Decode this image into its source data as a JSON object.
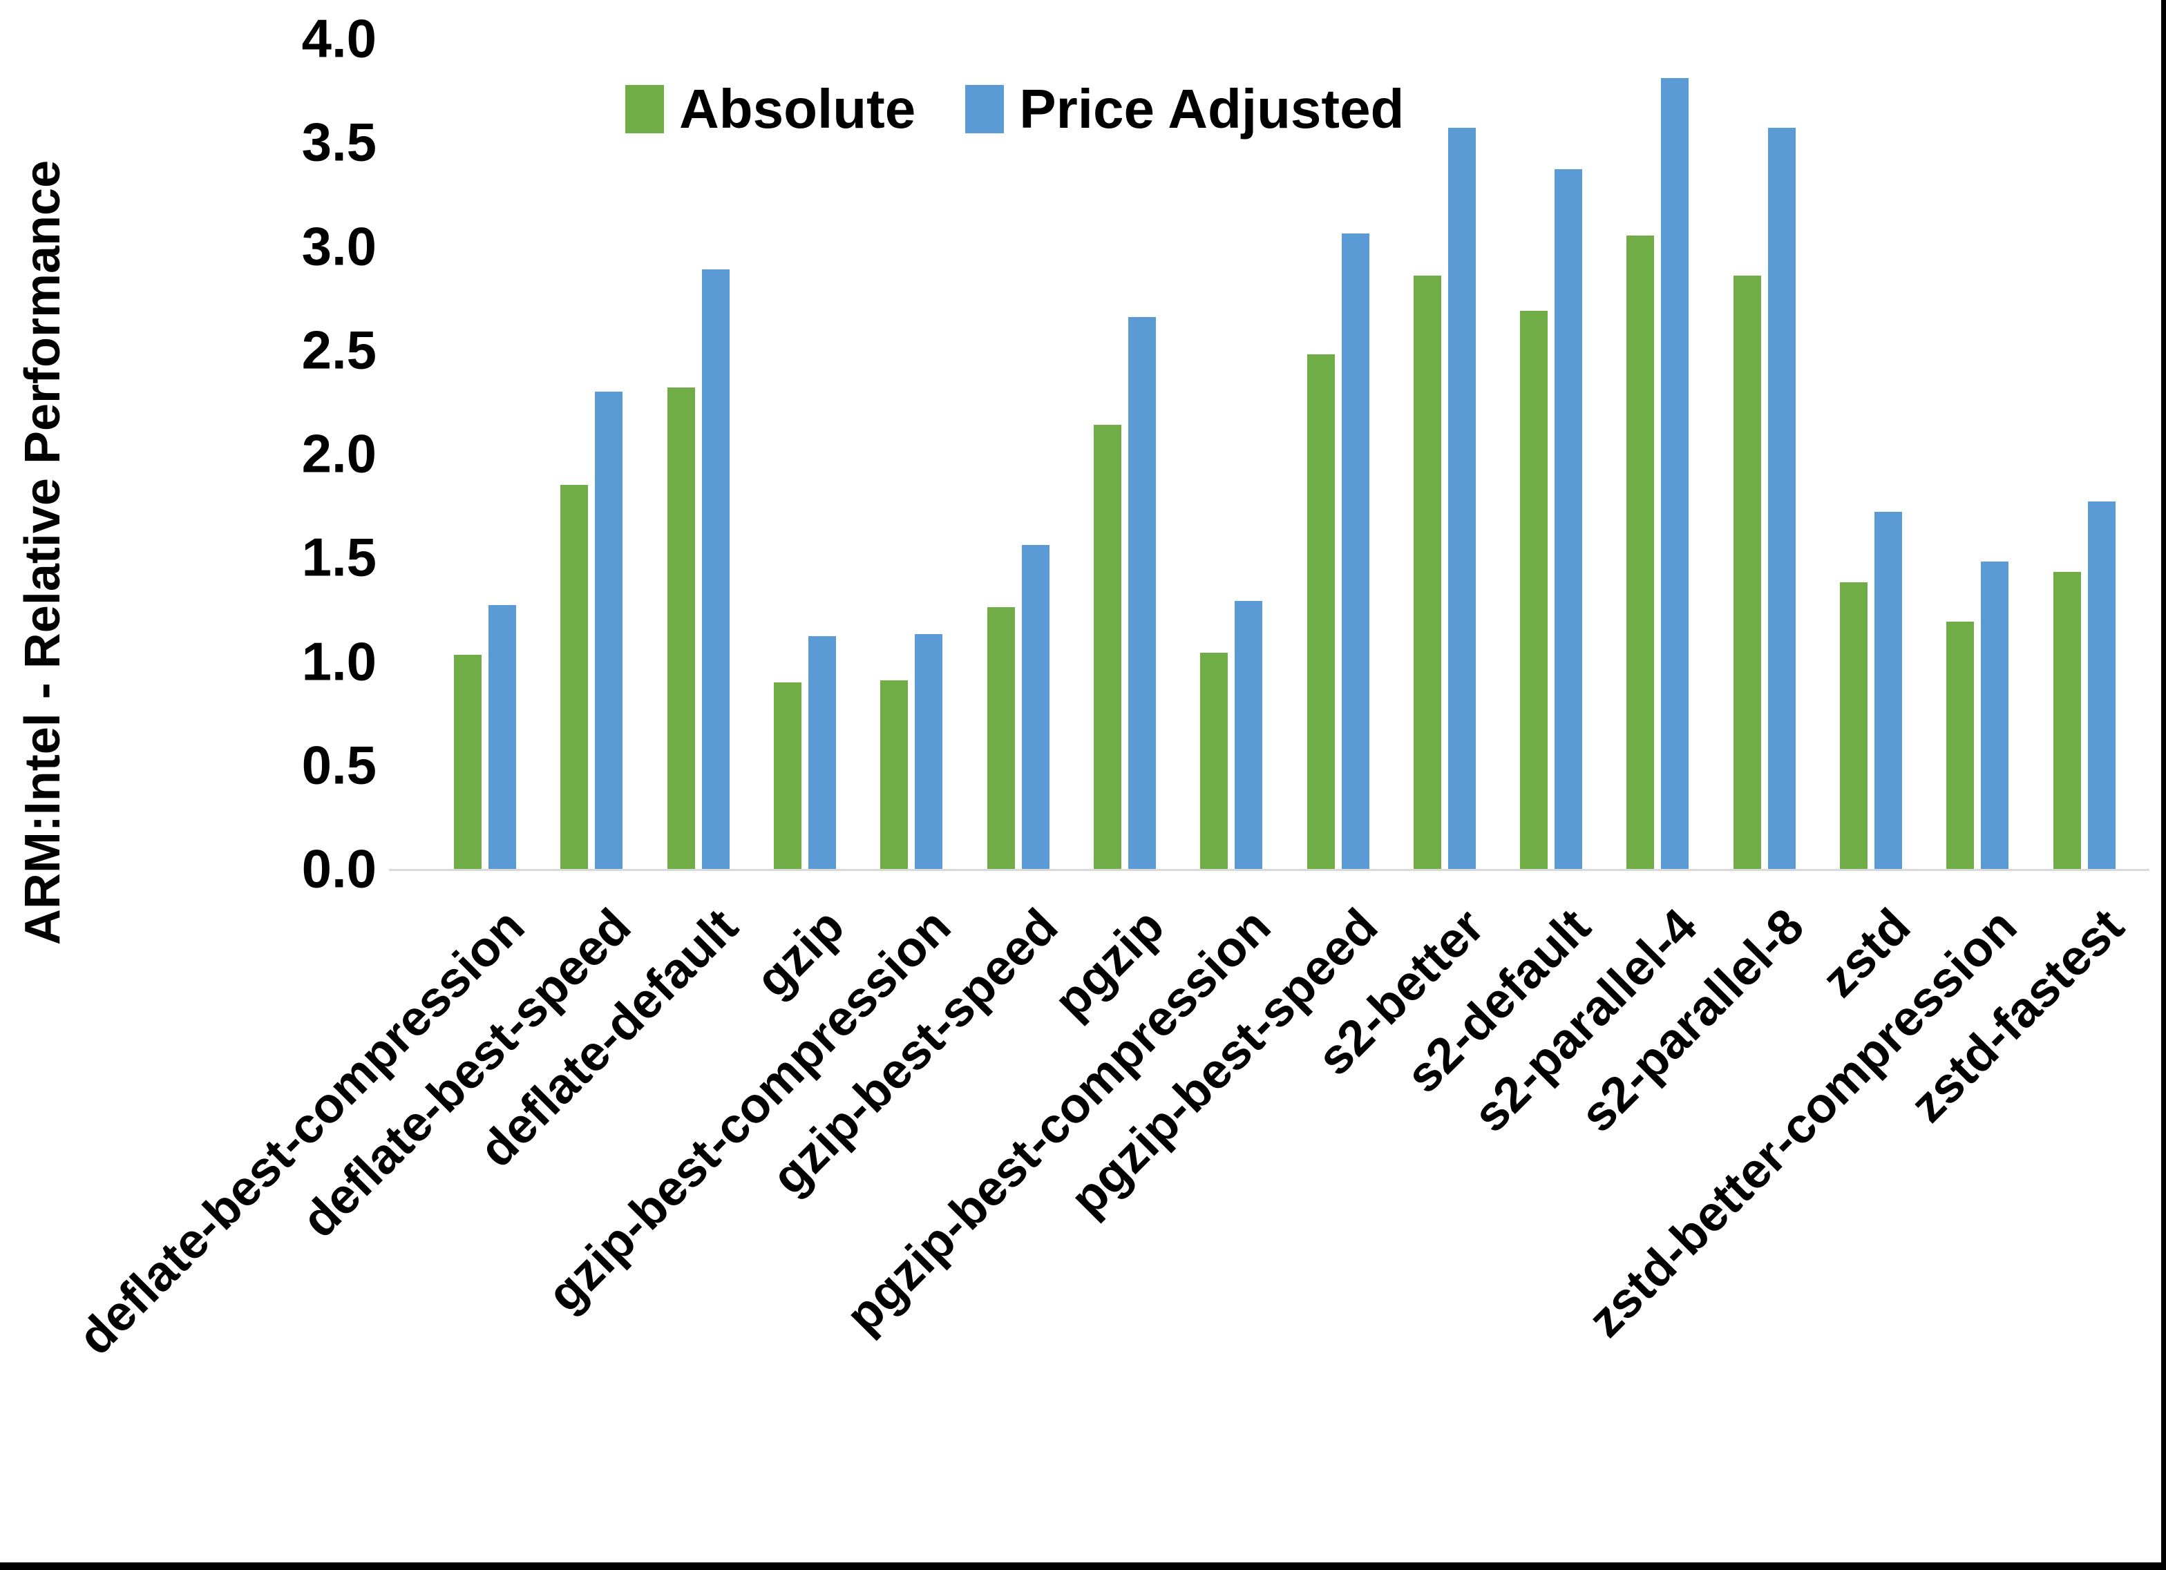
{
  "chart_data": {
    "type": "bar",
    "title": "",
    "ylabel": "ARM:Intel - Relative Performance",
    "xlabel": "",
    "ylim": [
      0.0,
      4.0
    ],
    "ytick_step": 0.5,
    "ytick_format_decimals": 1,
    "grid": false,
    "legend_position": "top-center",
    "axis_line_color": "#d9d9d9",
    "categories": [
      "deflate-best-compression",
      "deflate-best-speed",
      "deflate-default",
      "gzip",
      "gzip-best-compression",
      "gzip-best-speed",
      "pgzip",
      "pgzip-best-compression",
      "pgzip-best-speed",
      "s2-better",
      "s2-default",
      "s2-parallel-4",
      "s2-parallel-8",
      "zstd",
      "zstd-better-compression",
      "zstd-fastest"
    ],
    "series": [
      {
        "name": "Absolute",
        "color": "#70AD47",
        "values": [
          1.03,
          1.85,
          2.32,
          0.9,
          0.91,
          1.26,
          2.14,
          1.04,
          2.48,
          2.86,
          2.69,
          3.05,
          2.86,
          1.38,
          1.19,
          1.43
        ]
      },
      {
        "name": "Price Adjusted",
        "color": "#5B9BD5",
        "values": [
          1.27,
          2.3,
          2.89,
          1.12,
          1.13,
          1.56,
          2.66,
          1.29,
          3.06,
          3.57,
          3.37,
          3.81,
          3.57,
          1.72,
          1.48,
          1.77
        ]
      }
    ]
  }
}
